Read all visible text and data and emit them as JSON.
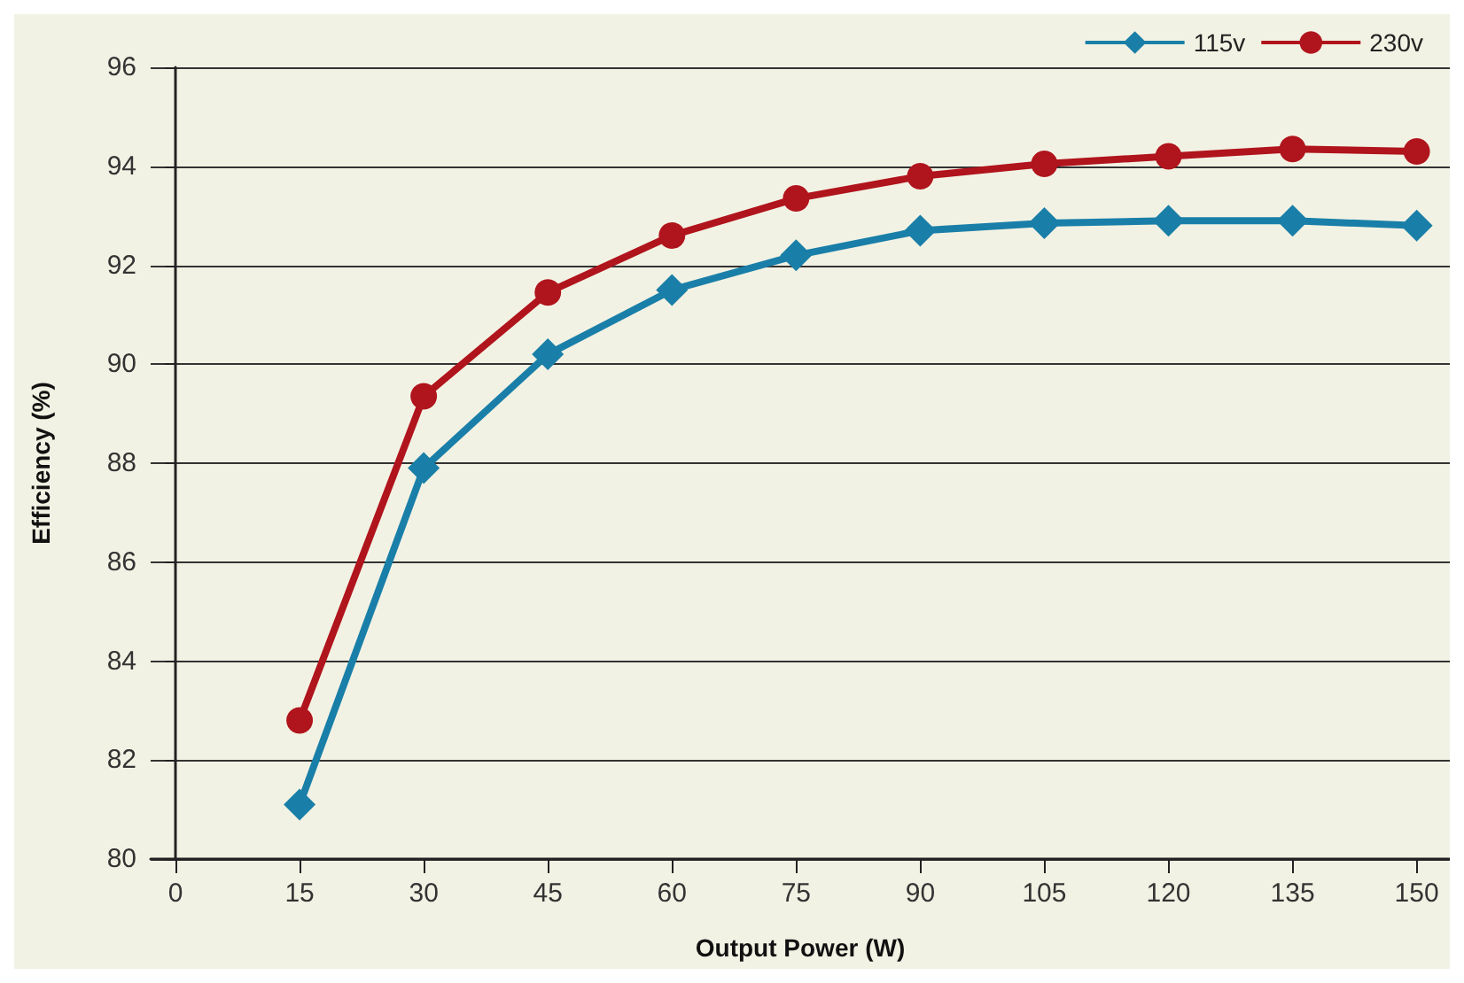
{
  "chart_data": {
    "type": "line",
    "xlabel": "Output Power (W)",
    "ylabel": "Efficiency (%)",
    "x": [
      15,
      30,
      45,
      60,
      75,
      90,
      105,
      120,
      135,
      150
    ],
    "series": [
      {
        "name": "115v",
        "color": "#1a7fa8",
        "marker": "diamond",
        "values": [
          81.1,
          87.9,
          90.2,
          91.5,
          92.2,
          92.7,
          92.85,
          92.9,
          92.9,
          92.8
        ]
      },
      {
        "name": "230v",
        "color": "#b0141c",
        "marker": "circle",
        "values": [
          82.8,
          89.35,
          91.45,
          92.6,
          93.35,
          93.8,
          94.05,
          94.2,
          94.35,
          94.3
        ]
      }
    ],
    "xlim": [
      -3,
      154
    ],
    "xticks": [
      0,
      15,
      30,
      45,
      60,
      75,
      90,
      105,
      120,
      135,
      150
    ],
    "ylim": [
      80,
      96
    ],
    "yticks": [
      80,
      82,
      84,
      86,
      88,
      90,
      92,
      94,
      96
    ],
    "grid": "y",
    "legend": "top right",
    "line_style": "solid"
  }
}
